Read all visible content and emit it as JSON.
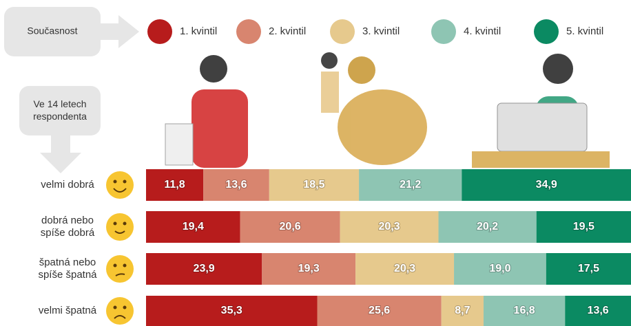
{
  "chart_data": {
    "type": "stacked-barh",
    "legend_title": "Současnost",
    "ylabel": "Ve 14 letech\nrespondenta",
    "categories": [
      "velmi dobrá",
      "dobrá nebo\nspíše dobrá",
      "špatná nebo\nspíše špatná",
      "velmi špatná"
    ],
    "xlim": [
      0,
      100
    ],
    "series": [
      {
        "name": "1. kvintil",
        "color": "#b71c1c",
        "values": [
          11.8,
          19.4,
          23.9,
          35.3
        ],
        "value_labels": [
          "11,8",
          "19,4",
          "23,9",
          "35,3"
        ]
      },
      {
        "name": "2. kvintil",
        "color": "#d8856f",
        "values": [
          13.6,
          20.6,
          19.3,
          25.6
        ],
        "value_labels": [
          "13,6",
          "20,6",
          "19,3",
          "25,6"
        ]
      },
      {
        "name": "3. kvintil",
        "color": "#e6c98d",
        "values": [
          18.5,
          20.3,
          20.3,
          8.7
        ],
        "value_labels": [
          "18,5",
          "20,3",
          "20,3",
          "8,7"
        ]
      },
      {
        "name": "4. kvintil",
        "color": "#8ec5b3",
        "values": [
          21.2,
          20.2,
          19.0,
          16.8
        ],
        "value_labels": [
          "21,2",
          "20,2",
          "19,0",
          "16,8"
        ]
      },
      {
        "name": "5. kvintil",
        "color": "#0b8a62",
        "values": [
          34.9,
          19.5,
          17.5,
          13.6
        ],
        "value_labels": [
          "34,9",
          "19,5",
          "17,5",
          "13,6"
        ]
      }
    ]
  }
}
